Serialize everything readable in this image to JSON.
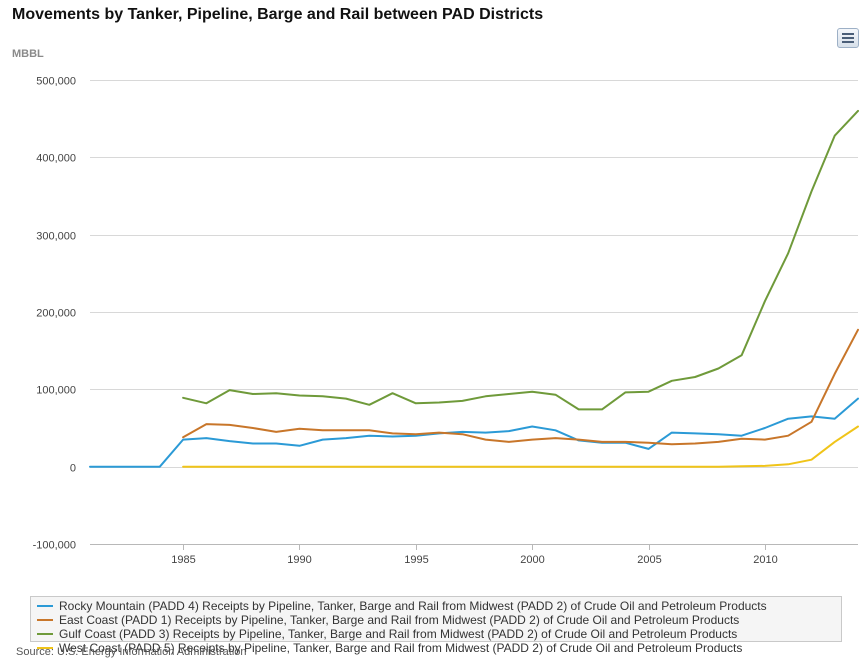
{
  "header": {
    "title": "Movements by Tanker, Pipeline, Barge and Rail between PAD Districts",
    "unit": "MBBL"
  },
  "toolbar": {
    "menu_icon": "hamburger-menu-icon"
  },
  "source": "Source: U.S. Energy Information Administration",
  "chart_data": {
    "type": "line",
    "ylabel": "MBBL",
    "xlim": [
      1981,
      2014
    ],
    "ylim": [
      -100000,
      500000
    ],
    "y_ticks": [
      -100000,
      0,
      100000,
      200000,
      300000,
      400000,
      500000
    ],
    "y_tick_labels": [
      "-100,000",
      "0",
      "100,000",
      "200,000",
      "300,000",
      "400,000",
      "500,000"
    ],
    "x_ticks": [
      1985,
      1990,
      1995,
      2000,
      2005,
      2010
    ],
    "x_tick_labels": [
      "1985",
      "1990",
      "1995",
      "2000",
      "2005",
      "2010"
    ],
    "grid": "horizontal",
    "legend_position": "bottom",
    "series": [
      {
        "name": "Rocky Mountain (PADD 4) Receipts by Pipeline, Tanker, Barge and Rail from Midwest (PADD 2) of Crude Oil and Petroleum Products",
        "color": "#2b9ad6",
        "x": [
          1981,
          1982,
          1983,
          1984,
          1985,
          1986,
          1987,
          1988,
          1989,
          1990,
          1991,
          1992,
          1993,
          1994,
          1995,
          1996,
          1997,
          1998,
          1999,
          2000,
          2001,
          2002,
          2003,
          2004,
          2005,
          2006,
          2007,
          2008,
          2009,
          2010,
          2011,
          2012,
          2013,
          2014
        ],
        "values": [
          0,
          0,
          0,
          0,
          35000,
          37000,
          33000,
          30000,
          30000,
          27000,
          35000,
          37000,
          40000,
          39000,
          40000,
          43000,
          45000,
          44000,
          46000,
          52000,
          47000,
          34000,
          31000,
          31000,
          23000,
          44000,
          43000,
          42000,
          40000,
          50000,
          62000,
          65000,
          62000,
          88000
        ]
      },
      {
        "name": "East Coast (PADD 1) Receipts by Pipeline, Tanker, Barge and Rail from Midwest (PADD 2) of Crude Oil and Petroleum Products",
        "color": "#c8762a",
        "x": [
          1985,
          1986,
          1987,
          1988,
          1989,
          1990,
          1991,
          1992,
          1993,
          1994,
          1995,
          1996,
          1997,
          1998,
          1999,
          2000,
          2001,
          2002,
          2003,
          2004,
          2005,
          2006,
          2007,
          2008,
          2009,
          2010,
          2011,
          2012,
          2013,
          2014
        ],
        "values": [
          38000,
          55000,
          54000,
          50000,
          45000,
          49000,
          47000,
          47000,
          47000,
          43000,
          42000,
          44000,
          42000,
          35000,
          32000,
          35000,
          37000,
          35000,
          32000,
          32000,
          31000,
          29000,
          30000,
          32000,
          36000,
          35000,
          40000,
          58000,
          120000,
          177000
        ]
      },
      {
        "name": "Gulf Coast (PADD 3) Receipts by Pipeline, Tanker, Barge and Rail from Midwest (PADD 2) of Crude Oil and Petroleum Products",
        "color": "#6f9a3a",
        "x": [
          1985,
          1986,
          1987,
          1988,
          1989,
          1990,
          1991,
          1992,
          1993,
          1994,
          1995,
          1996,
          1997,
          1998,
          1999,
          2000,
          2001,
          2002,
          2003,
          2004,
          2005,
          2006,
          2007,
          2008,
          2009,
          2010,
          2011,
          2012,
          2013,
          2014
        ],
        "values": [
          89000,
          82000,
          99000,
          94000,
          95000,
          92000,
          91000,
          88000,
          80000,
          95000,
          82000,
          83000,
          85000,
          91000,
          94000,
          97000,
          93000,
          74000,
          74000,
          96000,
          97000,
          111000,
          116000,
          127000,
          144000,
          214000,
          276000,
          356000,
          428000,
          460000
        ]
      },
      {
        "name": "West Coast (PADD 5) Receipts by Pipeline, Tanker, Barge and Rail from Midwest (PADD 2) of Crude Oil and Petroleum Products",
        "color": "#f0c419",
        "x": [
          1985,
          1986,
          1987,
          1988,
          1989,
          1990,
          1991,
          1992,
          1993,
          1994,
          1995,
          1996,
          1997,
          1998,
          1999,
          2000,
          2001,
          2002,
          2003,
          2004,
          2005,
          2006,
          2007,
          2008,
          2009,
          2010,
          2011,
          2012,
          2013,
          2014
        ],
        "values": [
          0,
          0,
          0,
          0,
          0,
          0,
          0,
          0,
          0,
          0,
          0,
          0,
          0,
          0,
          0,
          0,
          0,
          0,
          0,
          0,
          0,
          0,
          0,
          0,
          500,
          1000,
          3000,
          9000,
          32000,
          52000
        ]
      }
    ]
  }
}
